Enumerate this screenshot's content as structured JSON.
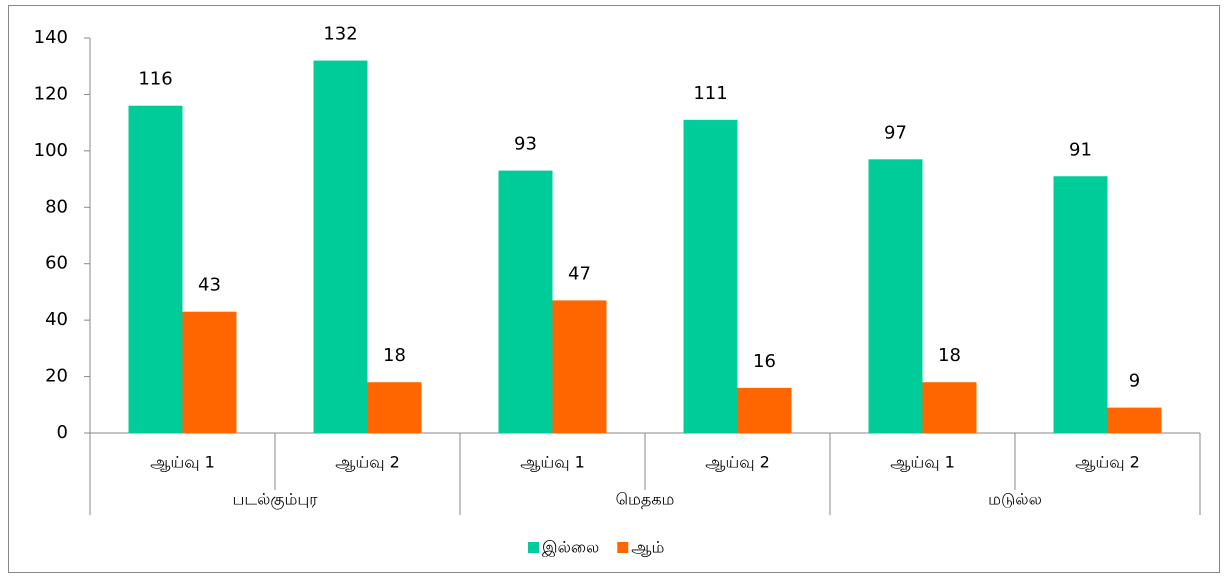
{
  "chart_data": {
    "type": "bar",
    "categories": [
      "ஆய்வு 1",
      "ஆய்வு 2",
      "ஆய்வு 1",
      "ஆய்வு 2",
      "ஆய்வு 1",
      "ஆய்வு 2"
    ],
    "groups": [
      "படல்கும்புர",
      "மெதகம",
      "மடுல்ல"
    ],
    "series": [
      {
        "name": "இல்லை",
        "color": "#00CC99",
        "values": [
          116,
          132,
          93,
          111,
          97,
          91
        ]
      },
      {
        "name": "ஆம்",
        "color": "#FF6600",
        "values": [
          43,
          18,
          47,
          16,
          18,
          9
        ]
      }
    ],
    "ylim": [
      0,
      140
    ],
    "yticks": [
      0,
      20,
      40,
      60,
      80,
      100,
      120,
      140
    ],
    "legend": "bottom"
  }
}
